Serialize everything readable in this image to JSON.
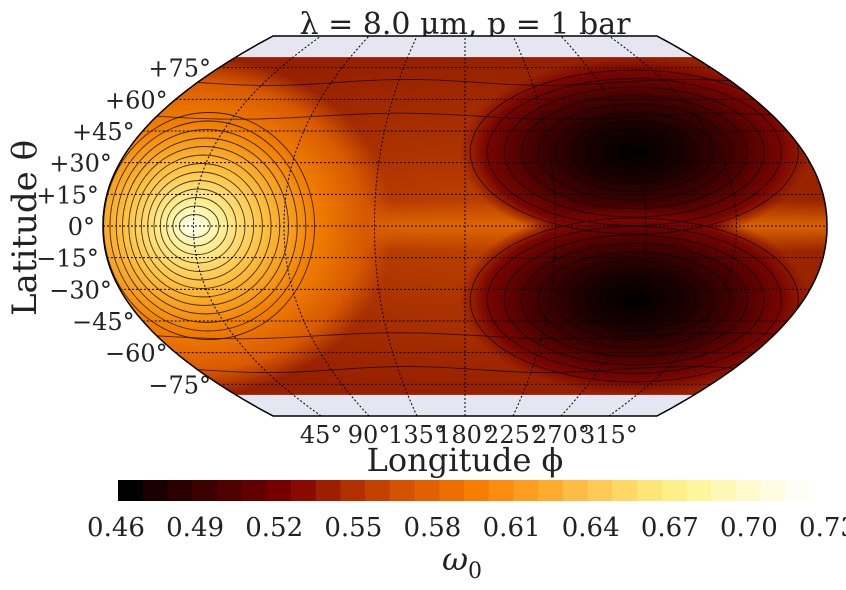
{
  "chart_data": {
    "type": "heatmap",
    "title": "λ = 8.0 μm, p = 1 bar",
    "xlabel": "Longitude ϕ",
    "ylabel": "Latitude θ",
    "projection": "Robinson",
    "lat_ticks": [
      "+75°",
      "+60°",
      "+45°",
      "+30°",
      "+15°",
      "0°",
      "−15°",
      "−30°",
      "−45°",
      "−60°",
      "−75°"
    ],
    "lat_values": [
      75,
      60,
      45,
      30,
      15,
      0,
      -15,
      -30,
      -45,
      -60,
      -75
    ],
    "lon_ticks": [
      "45°",
      "90°",
      "135°",
      "180°",
      "225°",
      "270°",
      "315°"
    ],
    "lon_values": [
      45,
      90,
      135,
      180,
      225,
      270,
      315
    ],
    "colorbar": {
      "label": "ω0",
      "label_main": "ω",
      "label_sub": "0",
      "tick_labels": [
        "0.46",
        "0.49",
        "0.52",
        "0.55",
        "0.58",
        "0.61",
        "0.64",
        "0.67",
        "0.70",
        "0.73"
      ],
      "min": 0.46,
      "max": 0.73,
      "levels": 28,
      "colors": [
        "#000000",
        "#1a0000",
        "#2a0000",
        "#3c0000",
        "#4f0000",
        "#620000",
        "#760000",
        "#8a0a00",
        "#9e1e00",
        "#b23000",
        "#c44200",
        "#d45200",
        "#e26000",
        "#ee6e00",
        "#f77d00",
        "#fb8c10",
        "#fc9c20",
        "#fdac30",
        "#fdbc44",
        "#fdca55",
        "#fdd866",
        "#fde577",
        "#fdf088",
        "#fef69c",
        "#fef8b4",
        "#fefacb",
        "#fffce2",
        "#fffef5"
      ]
    },
    "features": [
      {
        "name": "bright-spot",
        "lon": 45,
        "lat": 0,
        "value": 0.73
      },
      {
        "name": "dark-vortex-north",
        "lon": 270,
        "lat": 35,
        "value": 0.46
      },
      {
        "name": "dark-vortex-south",
        "lon": 270,
        "lat": -35,
        "value": 0.46
      }
    ]
  }
}
